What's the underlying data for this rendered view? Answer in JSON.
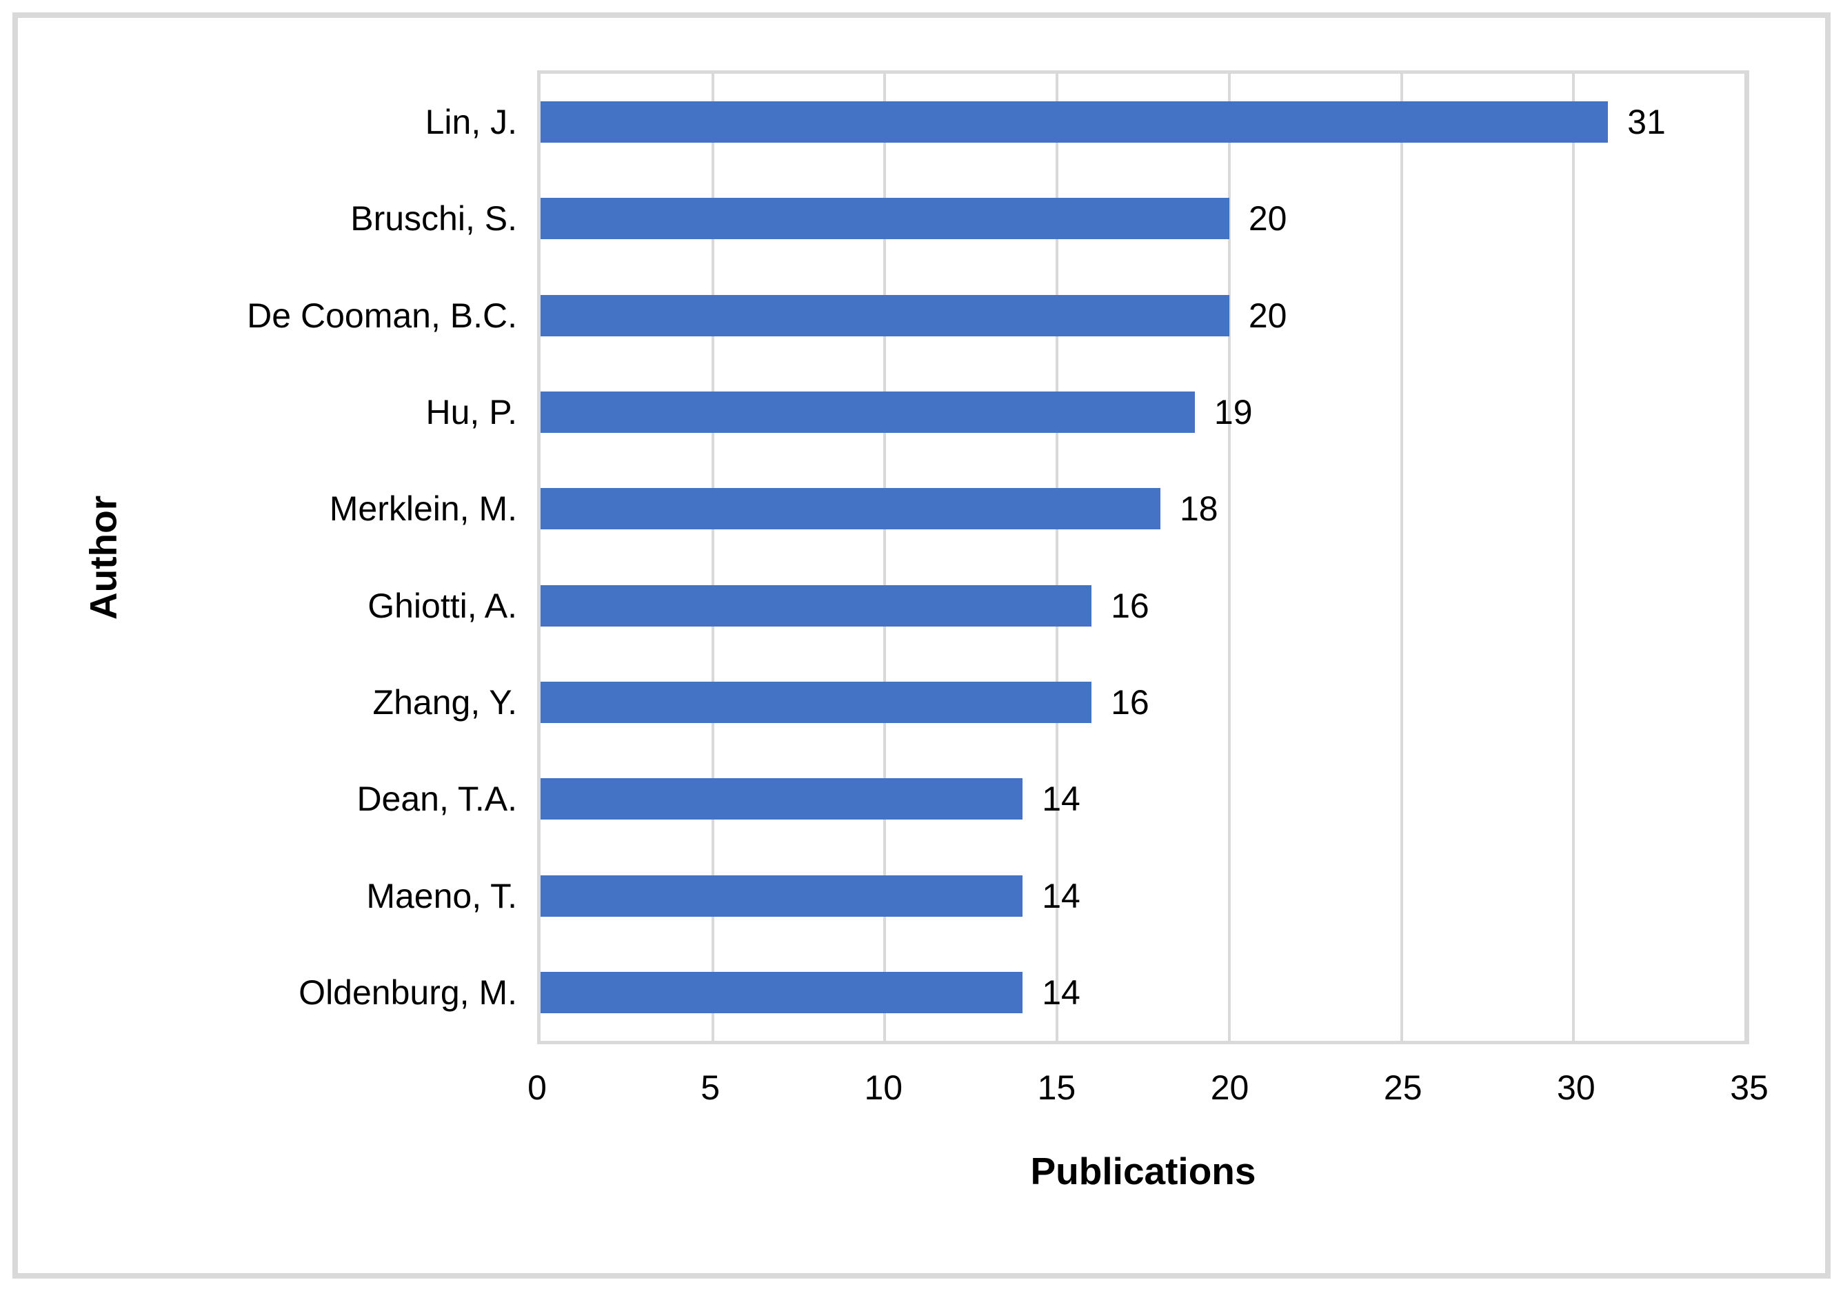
{
  "chart_data": {
    "type": "bar",
    "orientation": "horizontal",
    "title": "",
    "categories": [
      "Lin, J.",
      "Bruschi, S.",
      "De Cooman, B.C.",
      "Hu, P.",
      "Merklein, M.",
      "Ghiotti, A.",
      "Zhang, Y.",
      "Dean, T.A.",
      "Maeno, T.",
      "Oldenburg, M."
    ],
    "values": [
      31,
      20,
      20,
      19,
      18,
      16,
      16,
      14,
      14,
      14
    ],
    "data_labels": [
      "31",
      "20",
      "20",
      "19",
      "18",
      "16",
      "16",
      "14",
      "14",
      "14"
    ],
    "xlabel": "Publications",
    "ylabel": "Author",
    "xlim": [
      0,
      35
    ],
    "xticks": [
      0,
      5,
      10,
      15,
      20,
      25,
      30,
      35
    ],
    "grid": true,
    "legend": false,
    "bar_color": "#4472C4",
    "gridline_color": "#D9D9D9",
    "axis_border_color": "#D9D9D9",
    "frame_border_color": "#D9D9D9",
    "text_color": "#000000"
  }
}
